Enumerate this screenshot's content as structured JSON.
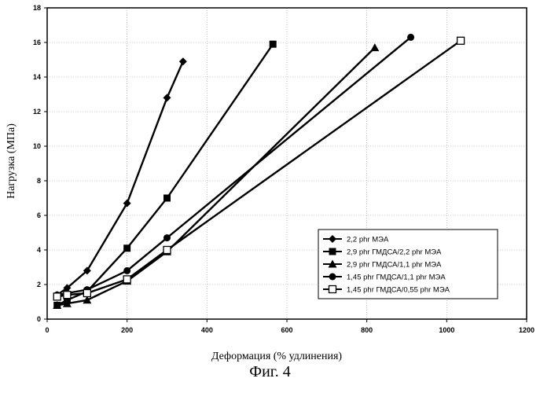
{
  "figure": {
    "caption": "Фиг. 4"
  },
  "chart_data": {
    "type": "line",
    "title": "",
    "xlabel": "Деформация (% удлинения)",
    "ylabel": "Нагрузка (МПа)",
    "xlim": [
      0,
      1200
    ],
    "ylim": [
      0,
      18
    ],
    "xticks": [
      0,
      200,
      400,
      600,
      800,
      1000,
      1200
    ],
    "yticks": [
      0,
      2,
      4,
      6,
      8,
      10,
      12,
      14,
      16,
      18
    ],
    "grid": true,
    "legend_position": "bottom-right",
    "series": [
      {
        "name": "2,2 phr МЭА",
        "marker": "diamond",
        "x": [
          25,
          50,
          100,
          200,
          300,
          340
        ],
        "y": [
          1.4,
          1.8,
          2.8,
          6.7,
          12.8,
          14.9
        ]
      },
      {
        "name": "2,9 phr ГМДСА/2,2 phr МЭА",
        "marker": "square",
        "x": [
          25,
          50,
          100,
          200,
          300,
          565
        ],
        "y": [
          0.8,
          1.1,
          1.6,
          4.1,
          7.0,
          15.9
        ]
      },
      {
        "name": "2,9 phr ГМДСА/1,1 phr МЭА",
        "marker": "triangle",
        "x": [
          25,
          50,
          100,
          200,
          300,
          820
        ],
        "y": [
          0.8,
          0.9,
          1.1,
          2.2,
          3.9,
          15.7
        ]
      },
      {
        "name": "1,45 phr ГМДСА/1,1 phr МЭА",
        "marker": "circle",
        "x": [
          25,
          50,
          100,
          200,
          300,
          910
        ],
        "y": [
          1.4,
          1.5,
          1.7,
          2.8,
          4.7,
          16.3
        ]
      },
      {
        "name": "1,45 phr ГМДСА/0,55 phr МЭА",
        "marker": "open-square",
        "x": [
          25,
          50,
          100,
          200,
          300,
          1035
        ],
        "y": [
          1.3,
          1.4,
          1.5,
          2.3,
          4.0,
          16.1
        ]
      }
    ]
  }
}
